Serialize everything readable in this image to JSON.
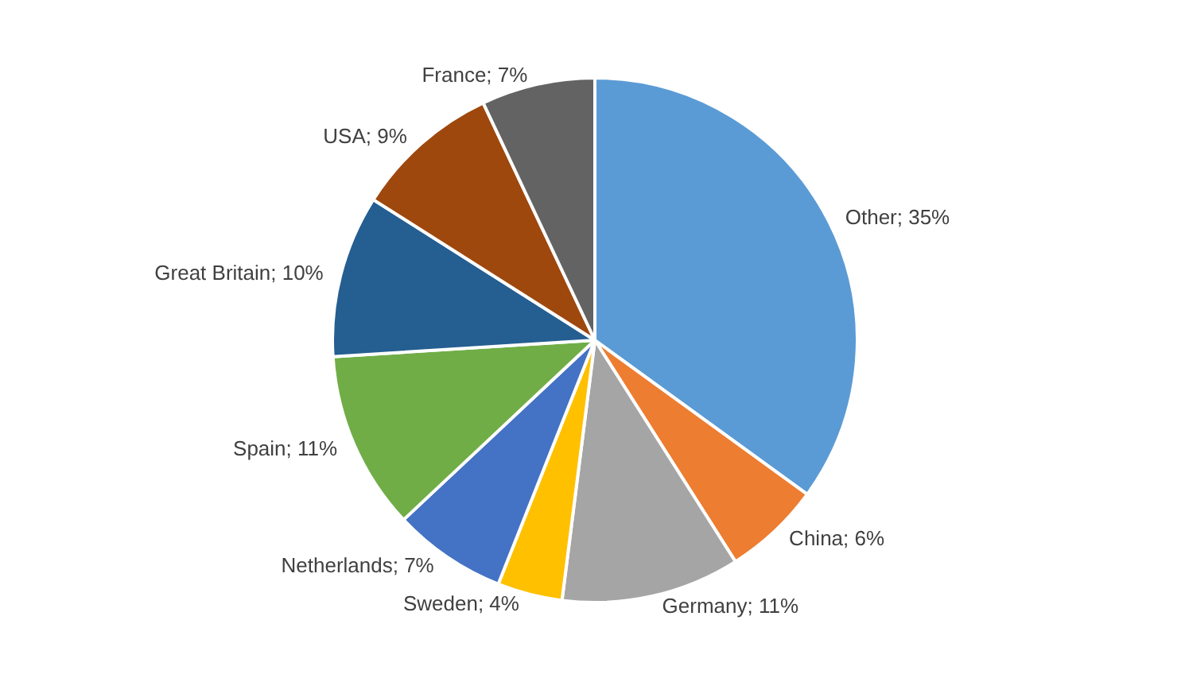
{
  "chart_data": {
    "type": "pie",
    "categories": [
      "Other",
      "China",
      "Germany",
      "Sweden",
      "Netherlands",
      "Spain",
      "Great Britain",
      "USA",
      "France"
    ],
    "values": [
      35,
      6,
      11,
      4,
      7,
      11,
      10,
      9,
      7
    ],
    "colors": [
      "#5b9bd5",
      "#ed7d31",
      "#a5a5a5",
      "#ffc000",
      "#4472c4",
      "#70ad47",
      "#255e91",
      "#9e480e",
      "#636363"
    ],
    "value_labels": [
      "35%",
      "6%",
      "11%",
      "4%",
      "7%",
      "11%",
      "10%",
      "9%",
      "7%"
    ],
    "legend": false
  }
}
